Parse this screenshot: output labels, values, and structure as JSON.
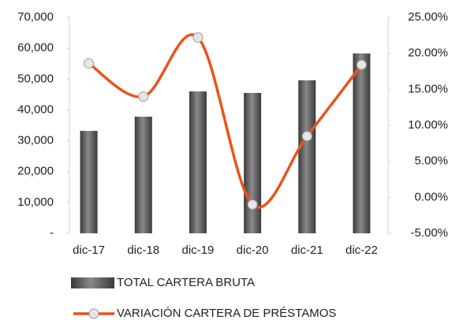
{
  "chart_data": {
    "type": "bar_line",
    "categories": [
      "dic-17",
      "dic-18",
      "dic-19",
      "dic-20",
      "dic-21",
      "dic-22"
    ],
    "series": [
      {
        "name": "TOTAL CARTERA BRUTA",
        "type": "bar",
        "color": "#666666",
        "values": [
          33200,
          37800,
          46000,
          45500,
          49600,
          58300
        ]
      },
      {
        "name": "VARIACIÓN CARTERA DE PRÉSTAMOS",
        "type": "line",
        "axis": "y2",
        "color": "#e8541c",
        "values": [
          18.6,
          14.0,
          22.2,
          -1.0,
          8.5,
          18.4
        ]
      }
    ],
    "ylim": [
      0,
      70000
    ],
    "yticks": [
      {
        "value": 0,
        "label": "-"
      },
      {
        "value": 10000,
        "label": "10,000"
      },
      {
        "value": 20000,
        "label": "20,000"
      },
      {
        "value": 30000,
        "label": "30,000"
      },
      {
        "value": 40000,
        "label": "40,000"
      },
      {
        "value": 50000,
        "label": "50,000"
      },
      {
        "value": 60000,
        "label": "60,000"
      },
      {
        "value": 70000,
        "label": "70,000"
      }
    ],
    "y2lim": [
      -5,
      25
    ],
    "y2ticks": [
      {
        "value": -5,
        "label": "-5.00%"
      },
      {
        "value": 0,
        "label": "0.00%"
      },
      {
        "value": 5,
        "label": "5.00%"
      },
      {
        "value": 10,
        "label": "10.00%"
      },
      {
        "value": 15,
        "label": "15.00%"
      },
      {
        "value": 20,
        "label": "20.00%"
      },
      {
        "value": 25,
        "label": "25.00%"
      }
    ],
    "legend": "bottom"
  }
}
